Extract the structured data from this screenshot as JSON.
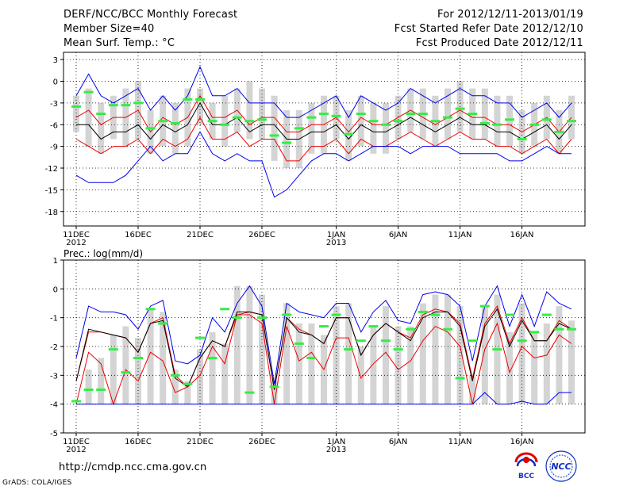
{
  "header": {
    "title": "DERF/NCC/BCC Monthly Forecast",
    "member_size": "Member Size=40",
    "variable": "Mean Surf. Temp.: °C",
    "forecast_period": "For 2012/12/11-2013/01/19",
    "started_refer": "Fcst Started Refer Date 2012/12/10",
    "produced": "Fcst Produced Date 2012/12/11"
  },
  "footer": {
    "url": "http://cmdp.ncc.cma.gov.cn",
    "credit": "GrADS: COLA/IGES",
    "logo_bcc": "BCC",
    "logo_ncc": "NCC"
  },
  "colors": {
    "ensemble_max_min": "#0000ee",
    "ensemble_sigma": "#ee0000",
    "ensemble_mean": "#000000",
    "range_box": "#d4d4d4",
    "observation": "#33ee44"
  },
  "chart_data": [
    {
      "type": "line",
      "title": "Mean Surf. Temp.: °C",
      "x_tick_labels": [
        "11DEC\n2012",
        "16DEC",
        "21DEC",
        "26DEC",
        "1JAN\n2013",
        "6JAN",
        "11JAN",
        "16JAN"
      ],
      "x_tick_days": [
        0,
        5,
        10,
        15,
        21,
        26,
        31,
        36
      ],
      "days": 40,
      "ylim": [
        -20,
        4
      ],
      "y_ticks": [
        3,
        0,
        -3,
        -6,
        -9,
        -12,
        -15,
        -18
      ],
      "series": [
        {
          "name": "max",
          "values": [
            -2,
            1,
            -2,
            -3,
            -2,
            -1,
            -4,
            -2,
            -4,
            -2,
            2,
            -2,
            -2,
            -1,
            -3,
            -3,
            -3,
            -5,
            -5,
            -4,
            -3,
            -2,
            -5,
            -2,
            -3,
            -4,
            -3,
            -1,
            -2,
            -3,
            -2,
            -1,
            -2,
            -2,
            -3,
            -3,
            -5,
            -4,
            -3,
            -5,
            -3
          ]
        },
        {
          "name": "plus_sigma",
          "values": [
            -5,
            -4,
            -6,
            -5,
            -5,
            -4,
            -7,
            -5,
            -6,
            -5,
            -2,
            -5,
            -5,
            -4,
            -6,
            -5,
            -5,
            -7,
            -7,
            -6,
            -6,
            -5,
            -7,
            -5,
            -6,
            -6,
            -5,
            -4,
            -5,
            -6,
            -5,
            -4,
            -5,
            -5,
            -6,
            -6,
            -7,
            -6,
            -5,
            -7,
            -5
          ]
        },
        {
          "name": "mean",
          "values": [
            -6,
            -6,
            -8,
            -7,
            -7,
            -6,
            -8,
            -6,
            -7,
            -6,
            -3,
            -6,
            -6,
            -5,
            -7,
            -6,
            -6,
            -8,
            -8,
            -7,
            -7,
            -6,
            -8,
            -6,
            -7,
            -7,
            -6,
            -5,
            -6,
            -7,
            -6,
            -5,
            -6,
            -6,
            -7,
            -7,
            -8,
            -7,
            -6,
            -8,
            -6
          ]
        },
        {
          "name": "minus_sigma",
          "values": [
            -8,
            -9,
            -10,
            -9,
            -9,
            -8,
            -10,
            -8,
            -9,
            -8,
            -5,
            -8,
            -8,
            -7,
            -9,
            -8,
            -8,
            -11,
            -11,
            -9,
            -9,
            -8,
            -10,
            -8,
            -9,
            -9,
            -8,
            -7,
            -8,
            -9,
            -8,
            -7,
            -8,
            -8,
            -9,
            -9,
            -10,
            -9,
            -8,
            -10,
            -8
          ]
        },
        {
          "name": "min",
          "values": [
            -13,
            -14,
            -14,
            -14,
            -13,
            -11,
            -9,
            -11,
            -10,
            -10,
            -7,
            -10,
            -11,
            -10,
            -11,
            -11,
            -16,
            -15,
            -13,
            -11,
            -10,
            -10,
            -11,
            -10,
            -9,
            -9,
            -9,
            -10,
            -9,
            -9,
            -9,
            -10,
            -10,
            -10,
            -10,
            -11,
            -11,
            -10,
            -9,
            -10,
            -10
          ]
        }
      ],
      "range_boxes": {
        "top": [
          -2,
          -1,
          -3,
          -2,
          -1,
          0,
          -4,
          -2,
          -3,
          -1,
          -1,
          -3,
          -2,
          -1,
          0,
          -1,
          -2,
          -4,
          -4,
          -3,
          -2,
          -2,
          -4,
          -2,
          -3,
          -3,
          -2,
          -1,
          -1,
          -2,
          -1,
          0,
          -1,
          -1,
          -2,
          -2,
          -4,
          -3,
          -2,
          -4,
          -2
        ],
        "bottom": [
          -7,
          -9,
          -10,
          -8,
          -9,
          -8,
          -10,
          -9,
          -10,
          -9,
          -6,
          -8,
          -9,
          -7,
          -8,
          -8,
          -11,
          -12,
          -12,
          -10,
          -10,
          -8,
          -11,
          -9,
          -10,
          -10,
          -8,
          -7,
          -8,
          -9,
          -8,
          -7,
          -8,
          -8,
          -9,
          -9,
          -10,
          -9,
          -8,
          -10,
          -8
        ]
      },
      "observation": [
        -3.5,
        -1.5,
        -4.5,
        -3.3,
        -3.3,
        -3.0,
        -6.5,
        -5.5,
        -5.8,
        -2.5,
        -2.5,
        -5.5,
        -6.0,
        -5.0,
        -5.5,
        -5.3,
        -7.5,
        -8.5,
        -6.5,
        -5.0,
        -4.5,
        -4.8,
        -7.3,
        -4.5,
        -5.5,
        -6.0,
        -5.5,
        -4.5,
        -4.5,
        -5.5,
        -5.0,
        -3.8,
        -4.5,
        -5.8,
        -6.0,
        -5.3,
        -8.0,
        -6.0,
        -5.3,
        -7.0,
        -5.5
      ]
    },
    {
      "type": "line",
      "title": "Prec.: log(mm/d)",
      "x_tick_labels": [
        "11DEC\n2012",
        "16DEC",
        "21DEC",
        "26DEC",
        "1JAN\n2013",
        "6JAN",
        "11JAN",
        "16JAN"
      ],
      "x_tick_days": [
        0,
        5,
        10,
        15,
        21,
        26,
        31,
        36
      ],
      "days": 40,
      "ylim": [
        -5,
        1
      ],
      "y_ticks": [
        1,
        0,
        -1,
        -2,
        -3,
        -4,
        -5
      ],
      "series": [
        {
          "name": "max",
          "values": [
            -2.4,
            -0.6,
            -0.8,
            -0.8,
            -0.9,
            -1.4,
            -0.6,
            -0.4,
            -2.5,
            -2.6,
            -2.3,
            -1.0,
            -1.5,
            -0.5,
            0.1,
            -0.6,
            -3.3,
            -0.5,
            -0.8,
            -0.9,
            -1.0,
            -0.5,
            -0.5,
            -1.5,
            -0.8,
            -0.4,
            -1.1,
            -1.2,
            -0.2,
            -0.1,
            -0.2,
            -0.6,
            -2.5,
            -0.6,
            0.1,
            -1.3,
            -0.2,
            -1.3,
            -0.1,
            -0.5,
            -0.7
          ]
        },
        {
          "name": "plus_sigma",
          "values": [
            -3.2,
            -1.5,
            -1.5,
            -1.6,
            -1.7,
            -2.2,
            -1.2,
            -1.0,
            -3.0,
            -3.4,
            -2.4,
            -1.8,
            -2.0,
            -0.9,
            -0.8,
            -0.9,
            -3.5,
            -1.0,
            -1.4,
            -1.6,
            -1.9,
            -1.0,
            -1.0,
            -2.3,
            -1.6,
            -1.2,
            -1.5,
            -1.7,
            -0.9,
            -0.7,
            -0.8,
            -1.2,
            -3.1,
            -1.2,
            -0.6,
            -1.9,
            -1.0,
            -1.8,
            -1.8,
            -1.1,
            -1.4
          ]
        },
        {
          "name": "mean",
          "values": [
            -3.2,
            -1.4,
            -1.5,
            -1.6,
            -1.7,
            -2.2,
            -1.2,
            -1.1,
            -3.1,
            -3.4,
            -2.4,
            -1.8,
            -2.0,
            -0.8,
            -0.8,
            -0.9,
            -3.5,
            -1.0,
            -1.5,
            -1.6,
            -1.9,
            -1.0,
            -1.0,
            -2.3,
            -1.6,
            -1.2,
            -1.5,
            -1.8,
            -1.0,
            -0.8,
            -0.8,
            -1.3,
            -3.2,
            -1.3,
            -0.7,
            -2.0,
            -1.1,
            -1.8,
            -1.8,
            -1.2,
            -1.4
          ]
        },
        {
          "name": "minus_sigma",
          "values": [
            -4.0,
            -2.2,
            -2.6,
            -4.0,
            -2.8,
            -3.2,
            -2.2,
            -2.5,
            -3.6,
            -3.4,
            -3.0,
            -2.0,
            -2.6,
            -0.9,
            -0.9,
            -1.2,
            -4.0,
            -1.3,
            -2.5,
            -2.2,
            -2.8,
            -1.7,
            -1.7,
            -3.1,
            -2.6,
            -2.2,
            -2.8,
            -2.5,
            -1.8,
            -1.3,
            -1.5,
            -2.0,
            -4.0,
            -2.1,
            -1.2,
            -2.9,
            -2.0,
            -2.4,
            -2.3,
            -1.6,
            -1.9
          ]
        },
        {
          "name": "min",
          "values": [
            -4.0,
            -4.0,
            -4.0,
            -4.0,
            -4.0,
            -4.0,
            -4.0,
            -4.0,
            -4.0,
            -4.0,
            -4.0,
            -4.0,
            -4.0,
            -4.0,
            -4.0,
            -4.0,
            -4.0,
            -4.0,
            -4.0,
            -4.0,
            -4.0,
            -4.0,
            -4.0,
            -4.0,
            -4.0,
            -4.0,
            -4.0,
            -4.0,
            -4.0,
            -4.0,
            -4.0,
            -4.0,
            -4.0,
            -3.6,
            -4.0,
            -4.0,
            -3.9,
            -4.0,
            -4.0,
            -3.6,
            -3.6
          ]
        }
      ],
      "range_boxes": {
        "top": [
          -4.0,
          -2.8,
          -2.4,
          -1.6,
          -1.3,
          -1.7,
          -0.7,
          -0.8,
          -2.8,
          -3.2,
          -2.1,
          -1.5,
          -1.9,
          0.1,
          0.1,
          -0.2,
          -3.2,
          -0.5,
          -1.2,
          -1.2,
          -1.6,
          -0.6,
          -0.5,
          -2.0,
          -1.3,
          -0.6,
          -1.3,
          -1.3,
          -0.5,
          -0.2,
          -0.2,
          -0.6,
          -3.0,
          -0.6,
          -0.2,
          -1.5,
          -0.5,
          -1.5,
          -1.2,
          -0.6,
          -1.1
        ],
        "bottom": [
          -4.0,
          -4.0,
          -4.0,
          -4.0,
          -4.0,
          -4.0,
          -4.0,
          -4.0,
          -4.0,
          -4.0,
          -4.0,
          -4.0,
          -4.0,
          -4.0,
          -4.0,
          -4.0,
          -4.0,
          -4.0,
          -4.0,
          -4.0,
          -4.0,
          -4.0,
          -4.0,
          -4.0,
          -4.0,
          -4.0,
          -4.0,
          -4.0,
          -4.0,
          -4.0,
          -4.0,
          -4.0,
          -4.0,
          -4.0,
          -4.0,
          -4.0,
          -4.0,
          -4.0,
          -4.0,
          -4.0,
          -4.0
        ]
      },
      "observation": [
        -3.9,
        -3.5,
        -3.5,
        -2.1,
        -2.9,
        -2.4,
        -0.7,
        -1.2,
        -3.0,
        -3.3,
        -1.7,
        -2.4,
        -0.7,
        -1.0,
        -3.6,
        -1.0,
        -3.4,
        -0.9,
        -1.9,
        -2.4,
        -1.3,
        -0.9,
        -2.1,
        -1.8,
        -1.3,
        -1.8,
        -2.1,
        -1.4,
        -0.8,
        -0.9,
        -1.4,
        -3.1,
        -1.8,
        -0.6,
        -2.1,
        -0.9,
        -1.8,
        -1.5,
        -0.9,
        -1.4,
        -1.4
      ]
    }
  ]
}
